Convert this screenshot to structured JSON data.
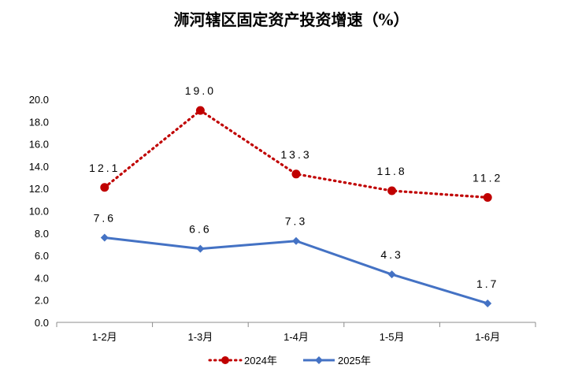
{
  "chart_data": {
    "type": "line",
    "title": "浉河辖区固定资产投资增速（%）",
    "categories": [
      "1-2月",
      "1-3月",
      "1-4月",
      "1-5月",
      "1-6月"
    ],
    "y_tick_labels": [
      "0.0",
      "2.0",
      "4.0",
      "6.0",
      "8.0",
      "10.0",
      "12.0",
      "14.0",
      "16.0",
      "18.0",
      "20.0"
    ],
    "ylim": [
      0,
      20
    ],
    "y_step": 2,
    "grid": false,
    "legend_position": "bottom",
    "series": [
      {
        "name": "2024年",
        "values": [
          12.1,
          19.0,
          13.3,
          11.8,
          11.2
        ],
        "labels": [
          "12.1",
          "19.0",
          "13.3",
          "11.8",
          "11.2"
        ],
        "color": "#C00000",
        "line_style": "dotted",
        "marker": "circle"
      },
      {
        "name": "2025年",
        "values": [
          7.6,
          6.6,
          7.3,
          4.3,
          1.7
        ],
        "labels": [
          "7.6",
          "6.6",
          "7.3",
          "4.3",
          "1.7"
        ],
        "color": "#4472C4",
        "line_style": "solid",
        "marker": "diamond"
      }
    ]
  }
}
